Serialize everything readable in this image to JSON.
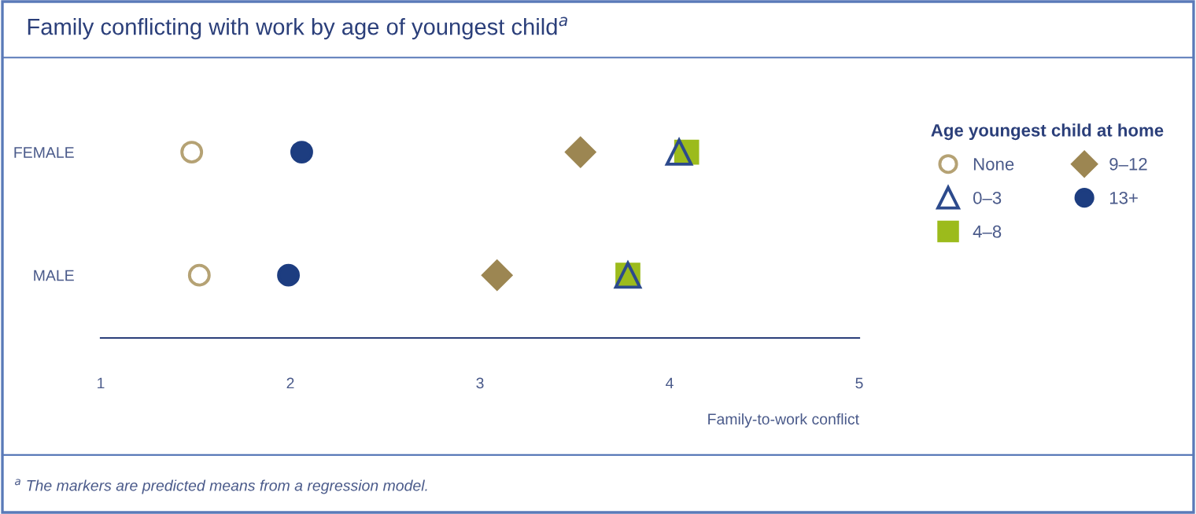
{
  "chart_data": {
    "type": "scatter",
    "title": "Family conflicting with work by age of youngest child$^{a}$",
    "orientation": "horizontal",
    "categories": [
      "FEMALE",
      "MALE"
    ],
    "series": [
      {
        "name": "None",
        "color": "#b5a274",
        "marker": "circle",
        "values": [
          1.48,
          1.52
        ]
      },
      {
        "name": "0–3",
        "color": "#2c4a8c",
        "marker": "triangle",
        "values": [
          4.05,
          3.78
        ]
      },
      {
        "name": "4–8",
        "color": "#9cbb1c",
        "marker": "square",
        "values": [
          4.09,
          3.78
        ]
      },
      {
        "name": "9–12",
        "color": "#9c8652",
        "marker": "diamond",
        "values": [
          3.53,
          3.09
        ]
      },
      {
        "name": "13+",
        "color": "#1d3d80",
        "marker": "circle",
        "values": [
          2.06,
          1.99
        ]
      }
    ],
    "xlim": [
      1,
      5
    ],
    "xticks": [
      1,
      2,
      3,
      4,
      5
    ],
    "xlabel": "Family-to-work conflict",
    "legend_title": "Age youngest child at home",
    "legend": "right",
    "grid": false,
    "annotations": [
      "$^{a}$ The markers are predicted means from a regression model."
    ]
  }
}
